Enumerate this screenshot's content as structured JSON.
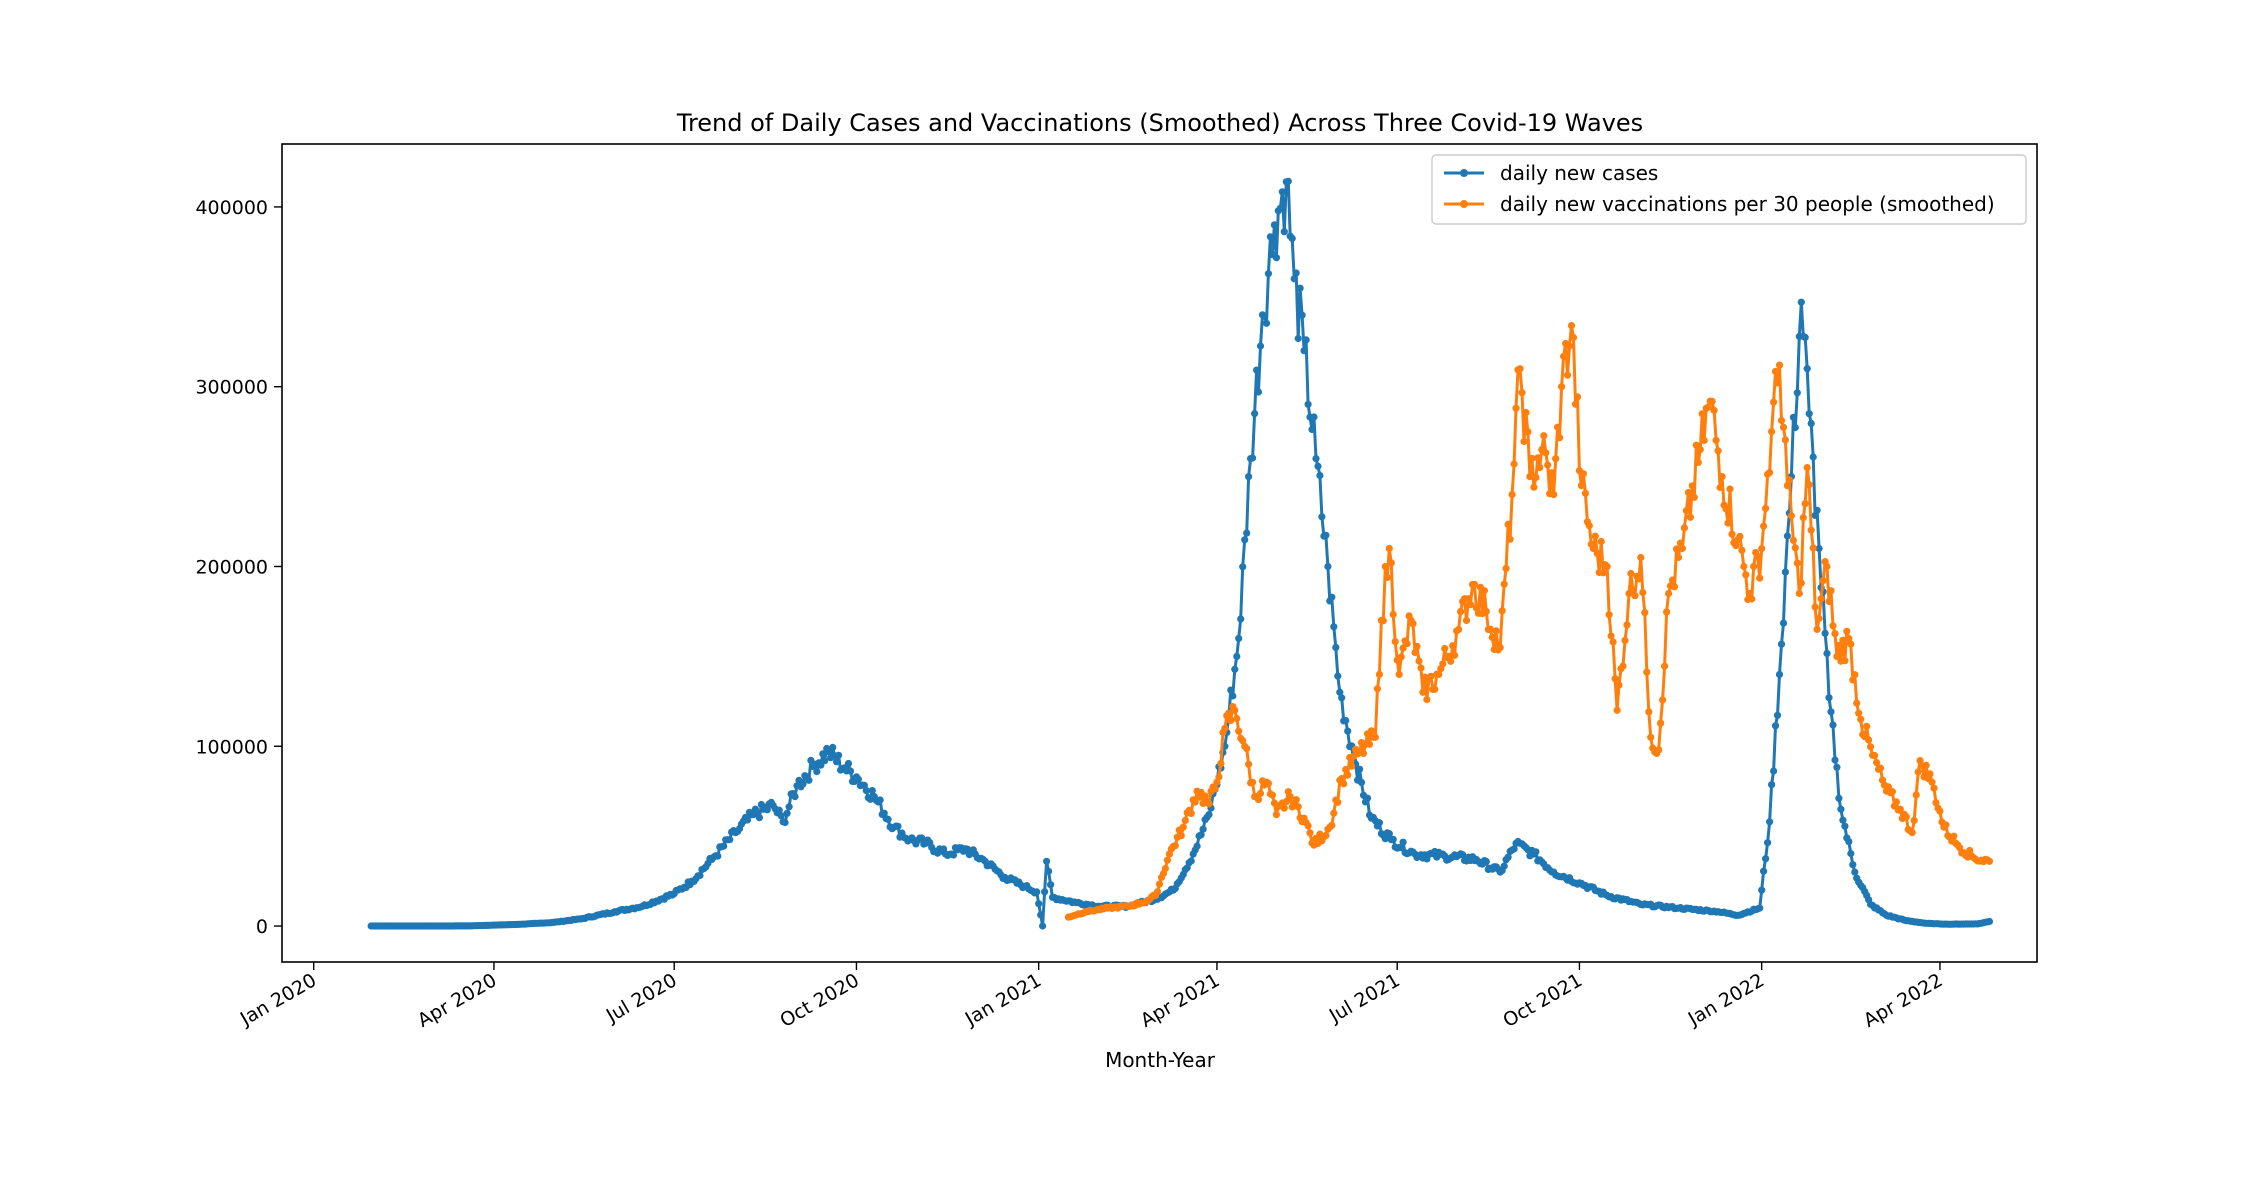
{
  "chart_data": {
    "type": "line",
    "title": "Trend of Daily Cases and Vaccinations (Smoothed) Across Three Covid-19 Waves",
    "xlabel": "Month-Year",
    "ylabel": "",
    "xlim": [
      "2019-12-16",
      "2022-05-20"
    ],
    "ylim": [
      -20000,
      435000
    ],
    "x_ticks": [
      {
        "date": "2020-01-01",
        "label": "Jan 2020"
      },
      {
        "date": "2020-04-01",
        "label": "Apr 2020"
      },
      {
        "date": "2020-07-01",
        "label": "Jul 2020"
      },
      {
        "date": "2020-10-01",
        "label": "Oct 2020"
      },
      {
        "date": "2021-01-01",
        "label": "Jan 2021"
      },
      {
        "date": "2021-04-01",
        "label": "Apr 2021"
      },
      {
        "date": "2021-07-01",
        "label": "Jul 2021"
      },
      {
        "date": "2021-10-01",
        "label": "Oct 2021"
      },
      {
        "date": "2022-01-01",
        "label": "Jan 2022"
      },
      {
        "date": "2022-04-01",
        "label": "Apr 2022"
      }
    ],
    "y_ticks": [
      {
        "value": 0,
        "label": "0"
      },
      {
        "value": 100000,
        "label": "100000"
      },
      {
        "value": 200000,
        "label": "200000"
      },
      {
        "value": 300000,
        "label": "300000"
      },
      {
        "value": 400000,
        "label": "400000"
      }
    ],
    "grid": false,
    "legend": "top-right",
    "series": [
      {
        "name": "daily new cases",
        "color": "#1f77b4",
        "points": [
          [
            "2020-01-30",
            0
          ],
          [
            "2020-02-15",
            0
          ],
          [
            "2020-03-01",
            0
          ],
          [
            "2020-03-20",
            100
          ],
          [
            "2020-04-01",
            500
          ],
          [
            "2020-04-15",
            1000
          ],
          [
            "2020-05-01",
            2000
          ],
          [
            "2020-05-15",
            4000
          ],
          [
            "2020-06-01",
            8000
          ],
          [
            "2020-06-15",
            11000
          ],
          [
            "2020-07-01",
            18000
          ],
          [
            "2020-07-10",
            25000
          ],
          [
            "2020-07-20",
            37000
          ],
          [
            "2020-08-01",
            52000
          ],
          [
            "2020-08-10",
            62000
          ],
          [
            "2020-08-20",
            67000
          ],
          [
            "2020-08-25",
            58000
          ],
          [
            "2020-09-01",
            78000
          ],
          [
            "2020-09-10",
            90000
          ],
          [
            "2020-09-17",
            97000
          ],
          [
            "2020-09-25",
            88000
          ],
          [
            "2020-10-01",
            83000
          ],
          [
            "2020-10-10",
            72000
          ],
          [
            "2020-10-20",
            55000
          ],
          [
            "2020-10-28",
            48000
          ],
          [
            "2020-11-05",
            46000
          ],
          [
            "2020-11-15",
            40000
          ],
          [
            "2020-11-25",
            43000
          ],
          [
            "2020-12-05",
            36000
          ],
          [
            "2020-12-15",
            27000
          ],
          [
            "2020-12-25",
            22000
          ],
          [
            "2020-12-31",
            19000
          ],
          [
            "2021-01-03",
            0
          ],
          [
            "2021-01-05",
            36000
          ],
          [
            "2021-01-08",
            16000
          ],
          [
            "2021-01-20",
            13000
          ],
          [
            "2021-02-01",
            11000
          ],
          [
            "2021-02-15",
            11000
          ],
          [
            "2021-03-01",
            15000
          ],
          [
            "2021-03-10",
            20000
          ],
          [
            "2021-03-20",
            40000
          ],
          [
            "2021-03-28",
            62000
          ],
          [
            "2021-04-05",
            100000
          ],
          [
            "2021-04-12",
            160000
          ],
          [
            "2021-04-18",
            260000
          ],
          [
            "2021-04-24",
            340000
          ],
          [
            "2021-04-30",
            390000
          ],
          [
            "2021-05-06",
            414000
          ],
          [
            "2021-05-10",
            360000
          ],
          [
            "2021-05-15",
            320000
          ],
          [
            "2021-05-21",
            260000
          ],
          [
            "2021-05-27",
            200000
          ],
          [
            "2021-06-02",
            130000
          ],
          [
            "2021-06-10",
            90000
          ],
          [
            "2021-06-18",
            60000
          ],
          [
            "2021-06-28",
            48000
          ],
          [
            "2021-07-10",
            40000
          ],
          [
            "2021-07-25",
            39000
          ],
          [
            "2021-08-10",
            37000
          ],
          [
            "2021-08-22",
            30000
          ],
          [
            "2021-08-30",
            46000
          ],
          [
            "2021-09-08",
            40000
          ],
          [
            "2021-09-18",
            30000
          ],
          [
            "2021-10-01",
            24000
          ],
          [
            "2021-10-15",
            17000
          ],
          [
            "2021-11-01",
            12000
          ],
          [
            "2021-11-20",
            10000
          ],
          [
            "2021-12-10",
            8000
          ],
          [
            "2021-12-20",
            6000
          ],
          [
            "2021-12-31",
            10000
          ],
          [
            "2022-01-05",
            58000
          ],
          [
            "2022-01-10",
            140000
          ],
          [
            "2022-01-16",
            250000
          ],
          [
            "2022-01-21",
            347000
          ],
          [
            "2022-01-25",
            285000
          ],
          [
            "2022-01-30",
            210000
          ],
          [
            "2022-02-04",
            127000
          ],
          [
            "2022-02-10",
            65000
          ],
          [
            "2022-02-17",
            30000
          ],
          [
            "2022-02-25",
            12000
          ],
          [
            "2022-03-05",
            6000
          ],
          [
            "2022-03-15",
            3000
          ],
          [
            "2022-03-25",
            1500
          ],
          [
            "2022-04-05",
            1000
          ],
          [
            "2022-04-20",
            1200
          ],
          [
            "2022-04-26",
            2500
          ]
        ]
      },
      {
        "name": "daily new vaccinations per 30 people (smoothed)",
        "color": "#ff7f0e",
        "points": [
          [
            "2021-01-16",
            5000
          ],
          [
            "2021-01-25",
            8000
          ],
          [
            "2021-02-05",
            10000
          ],
          [
            "2021-02-15",
            11000
          ],
          [
            "2021-02-25",
            14000
          ],
          [
            "2021-03-01",
            17000
          ],
          [
            "2021-03-08",
            40000
          ],
          [
            "2021-03-15",
            55000
          ],
          [
            "2021-03-22",
            75000
          ],
          [
            "2021-03-28",
            68000
          ],
          [
            "2021-04-01",
            80000
          ],
          [
            "2021-04-05",
            110000
          ],
          [
            "2021-04-10",
            120000
          ],
          [
            "2021-04-15",
            100000
          ],
          [
            "2021-04-20",
            72000
          ],
          [
            "2021-04-26",
            80000
          ],
          [
            "2021-05-01",
            62000
          ],
          [
            "2021-05-08",
            72000
          ],
          [
            "2021-05-15",
            60000
          ],
          [
            "2021-05-20",
            45000
          ],
          [
            "2021-05-28",
            55000
          ],
          [
            "2021-06-03",
            82000
          ],
          [
            "2021-06-12",
            97000
          ],
          [
            "2021-06-20",
            105000
          ],
          [
            "2021-06-23",
            170000
          ],
          [
            "2021-06-27",
            210000
          ],
          [
            "2021-07-02",
            140000
          ],
          [
            "2021-07-08",
            170000
          ],
          [
            "2021-07-14",
            130000
          ],
          [
            "2021-07-22",
            140000
          ],
          [
            "2021-08-01",
            165000
          ],
          [
            "2021-08-08",
            190000
          ],
          [
            "2021-08-15",
            175000
          ],
          [
            "2021-08-22",
            155000
          ],
          [
            "2021-08-28",
            240000
          ],
          [
            "2021-09-01",
            310000
          ],
          [
            "2021-09-06",
            250000
          ],
          [
            "2021-09-12",
            265000
          ],
          [
            "2021-09-18",
            240000
          ],
          [
            "2021-09-22",
            300000
          ],
          [
            "2021-09-27",
            334000
          ],
          [
            "2021-10-02",
            245000
          ],
          [
            "2021-10-08",
            210000
          ],
          [
            "2021-10-15",
            200000
          ],
          [
            "2021-10-20",
            120000
          ],
          [
            "2021-10-26",
            185000
          ],
          [
            "2021-11-01",
            205000
          ],
          [
            "2021-11-06",
            105000
          ],
          [
            "2021-11-10",
            98000
          ],
          [
            "2021-11-15",
            185000
          ],
          [
            "2021-11-22",
            210000
          ],
          [
            "2021-12-01",
            265000
          ],
          [
            "2021-12-06",
            292000
          ],
          [
            "2021-12-12",
            250000
          ],
          [
            "2021-12-20",
            215000
          ],
          [
            "2021-12-26",
            185000
          ],
          [
            "2022-01-01",
            210000
          ],
          [
            "2022-01-06",
            275000
          ],
          [
            "2022-01-10",
            312000
          ],
          [
            "2022-01-14",
            245000
          ],
          [
            "2022-01-20",
            185000
          ],
          [
            "2022-01-24",
            255000
          ],
          [
            "2022-01-29",
            165000
          ],
          [
            "2022-02-03",
            200000
          ],
          [
            "2022-02-08",
            150000
          ],
          [
            "2022-02-14",
            160000
          ],
          [
            "2022-02-20",
            115000
          ],
          [
            "2022-02-26",
            95000
          ],
          [
            "2022-03-05",
            75000
          ],
          [
            "2022-03-12",
            65000
          ],
          [
            "2022-03-18",
            52000
          ],
          [
            "2022-03-22",
            92000
          ],
          [
            "2022-03-28",
            80000
          ],
          [
            "2022-04-03",
            55000
          ],
          [
            "2022-04-10",
            45000
          ],
          [
            "2022-04-18",
            38000
          ],
          [
            "2022-04-26",
            36000
          ]
        ]
      }
    ]
  }
}
